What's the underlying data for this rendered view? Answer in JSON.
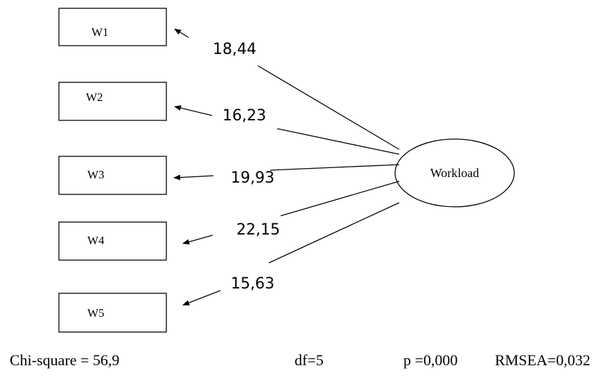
{
  "indicators": [
    {
      "label": "W1",
      "loading": "18,44"
    },
    {
      "label": "W2",
      "loading": "16,23"
    },
    {
      "label": "W3",
      "loading": "19,93"
    },
    {
      "label": "W4",
      "loading": "22,15"
    },
    {
      "label": "W5",
      "loading": "15,63"
    }
  ],
  "latent": {
    "label": "Workload"
  },
  "fit": {
    "chi_square": "Chi-square = 56,9",
    "df": "df=5",
    "p": "p =0,000",
    "rmsea": "RMSEA=0,032"
  }
}
